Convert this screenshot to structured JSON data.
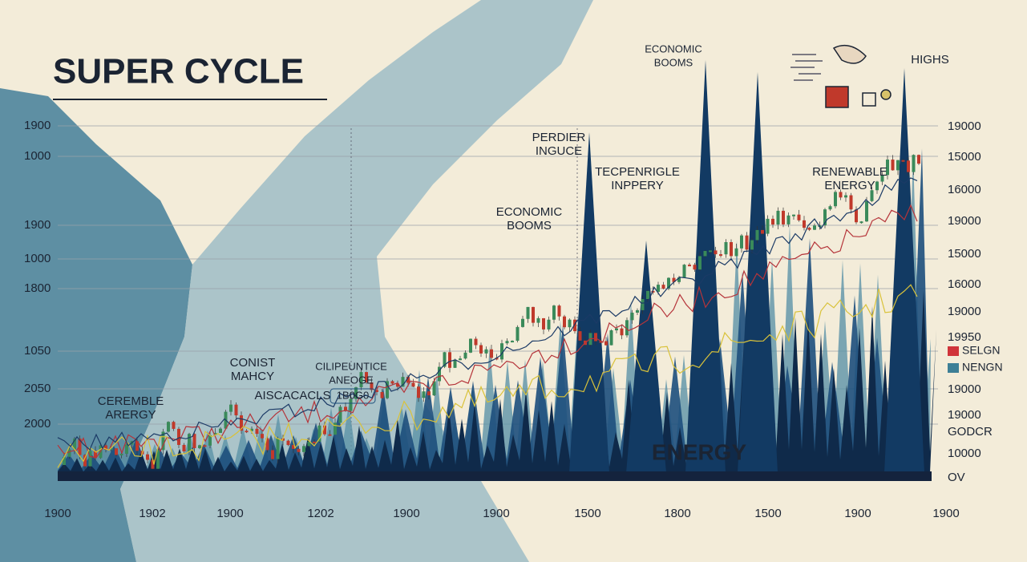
{
  "title": "SUPER CYCLE",
  "annotations": [
    {
      "lines": [
        "ECONOMIC",
        "BOOMS"
      ]
    },
    {
      "lines": [
        "HIGHS"
      ]
    },
    {
      "lines": [
        "PERDIER",
        "INGUCE"
      ]
    },
    {
      "lines": [
        "TECPENRIGLE",
        "INPPERY"
      ]
    },
    {
      "lines": [
        "RENEWABLE",
        "ENERGY"
      ]
    },
    {
      "lines": [
        "ECONOMIC",
        "BOOMS"
      ]
    },
    {
      "lines": [
        "CONIST",
        "MAHCY"
      ]
    },
    {
      "lines": [
        "CILIPEUNTICE",
        "ANEOGE"
      ]
    },
    {
      "lines": [
        "AISCACACLS"
      ]
    },
    {
      "lines": [
        "1B0G0"
      ]
    },
    {
      "lines": [
        "CEREMBLE",
        "ARERGY"
      ]
    },
    {
      "lines": [
        "ENERGY"
      ]
    }
  ],
  "left_axis_labels": [
    "1900",
    "1000",
    "1900",
    "1000",
    "1800",
    "1050",
    "2050",
    "2000"
  ],
  "right_axis_labels": [
    "19000",
    "15000",
    "16000",
    "19000",
    "15000",
    "16000",
    "19000",
    "19950",
    "19000",
    "19000",
    "GODCR",
    "10000",
    "OV"
  ],
  "legend": [
    "SELGN",
    "NENGN"
  ],
  "x_axis_labels": [
    "1900",
    "1902",
    "1900",
    "1202",
    "1900",
    "1900",
    "1500",
    "1800",
    "1500",
    "1900",
    "1900"
  ]
}
